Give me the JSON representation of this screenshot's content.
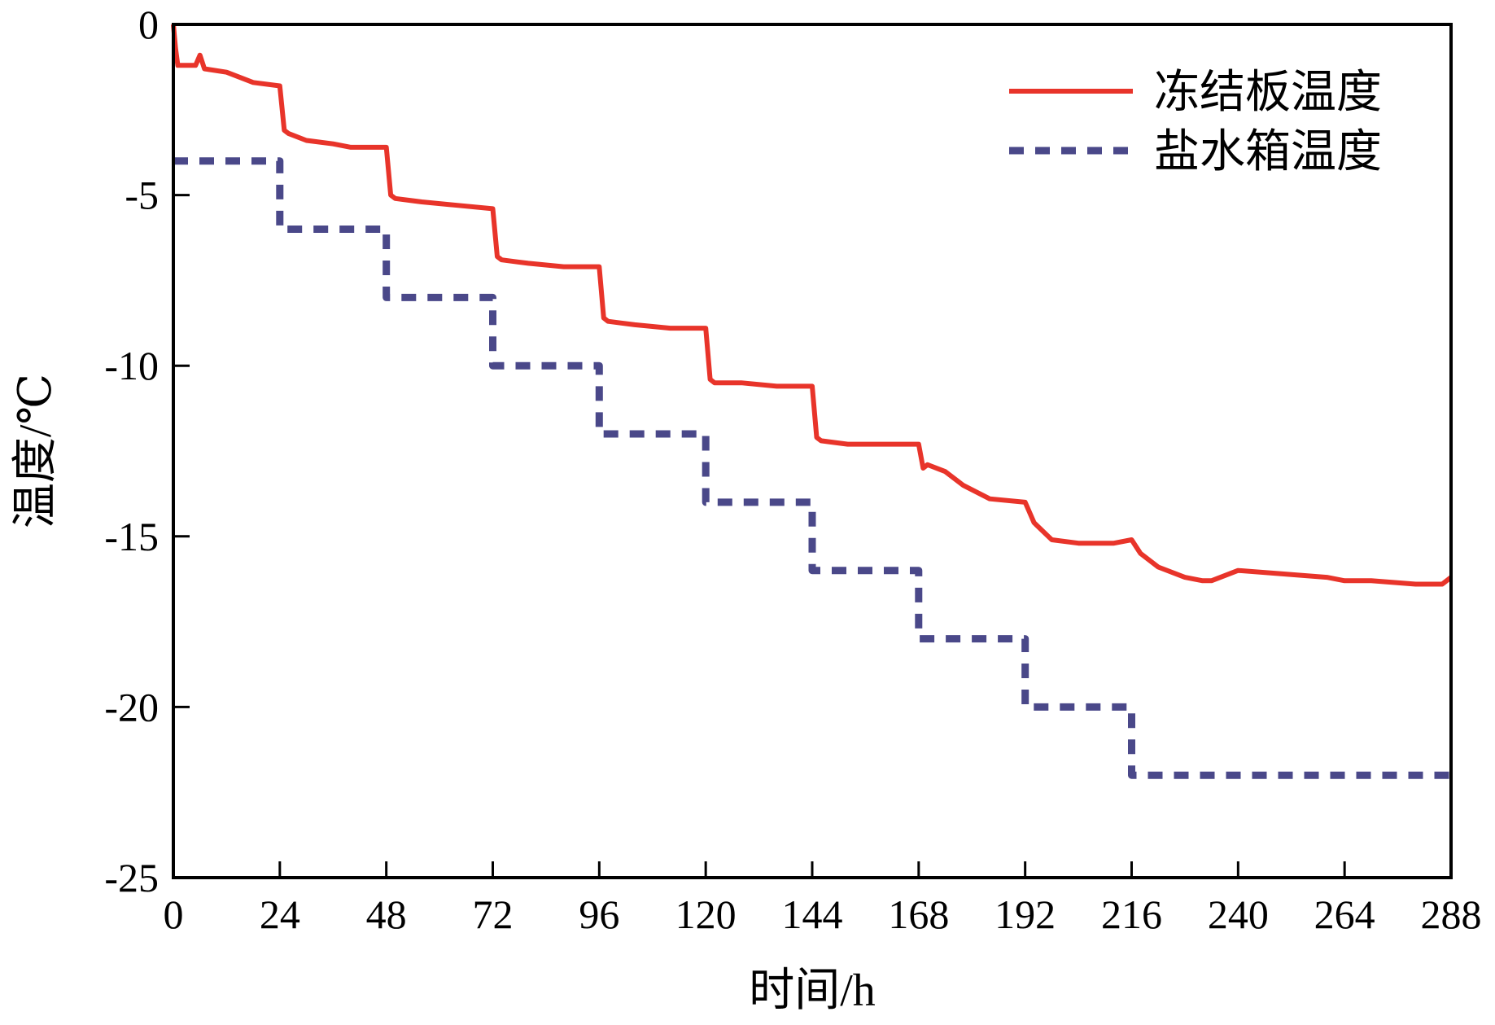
{
  "chart_data": {
    "type": "line",
    "title": "",
    "xlabel": "时间/h",
    "ylabel": "温度/℃",
    "xlim": [
      0,
      288
    ],
    "ylim": [
      -25,
      0
    ],
    "x_ticks": [
      0,
      24,
      48,
      72,
      96,
      120,
      144,
      168,
      192,
      216,
      240,
      264,
      288
    ],
    "y_ticks": [
      0,
      -5,
      -10,
      -15,
      -20,
      -25
    ],
    "x_tick_labels": [
      "0",
      "24",
      "48",
      "72",
      "96",
      "120",
      "144",
      "168",
      "192",
      "216",
      "240",
      "264",
      "288"
    ],
    "y_tick_labels": [
      "0",
      "-5",
      "-10",
      "-15",
      "-20",
      "-25"
    ],
    "grid": false,
    "legend_position": "top-right",
    "series": [
      {
        "name": "冻结板温度",
        "color": "#e8342a",
        "style": "solid",
        "x": [
          0,
          0.5,
          1,
          5,
          6,
          7,
          12,
          18,
          24,
          25,
          26,
          30,
          36,
          40,
          48,
          49,
          50,
          56,
          64,
          72,
          73,
          74,
          80,
          88,
          96,
          97,
          98,
          104,
          112,
          120,
          121,
          122,
          128,
          136,
          144,
          145,
          146,
          152,
          160,
          168,
          169,
          170,
          174,
          178,
          184,
          192,
          194,
          198,
          204,
          212,
          216,
          218,
          222,
          228,
          232,
          234,
          240,
          250,
          260,
          264,
          270,
          280,
          286,
          288
        ],
        "values": [
          0,
          -0.7,
          -1.2,
          -1.2,
          -0.9,
          -1.3,
          -1.4,
          -1.7,
          -1.8,
          -3.1,
          -3.2,
          -3.4,
          -3.5,
          -3.6,
          -3.6,
          -5.0,
          -5.1,
          -5.2,
          -5.3,
          -5.4,
          -6.8,
          -6.9,
          -7.0,
          -7.1,
          -7.1,
          -8.6,
          -8.7,
          -8.8,
          -8.9,
          -8.9,
          -10.4,
          -10.5,
          -10.5,
          -10.6,
          -10.6,
          -12.1,
          -12.2,
          -12.3,
          -12.3,
          -12.3,
          -13.0,
          -12.9,
          -13.1,
          -13.5,
          -13.9,
          -14.0,
          -14.6,
          -15.1,
          -15.2,
          -15.2,
          -15.1,
          -15.5,
          -15.9,
          -16.2,
          -16.3,
          -16.3,
          -16.0,
          -16.1,
          -16.2,
          -16.3,
          -16.3,
          -16.4,
          -16.4,
          -16.2
        ]
      },
      {
        "name": "盐水箱温度",
        "color": "#4a4889",
        "style": "dashed",
        "x": [
          0,
          24,
          24,
          48,
          48,
          72,
          72,
          96,
          96,
          120,
          120,
          144,
          144,
          168,
          168,
          192,
          192,
          216,
          216,
          288
        ],
        "values": [
          -4,
          -4,
          -6,
          -6,
          -8,
          -8,
          -10,
          -10,
          -12,
          -12,
          -14,
          -14,
          -16,
          -16,
          -18,
          -18,
          -20,
          -20,
          -22,
          -22
        ]
      }
    ]
  }
}
